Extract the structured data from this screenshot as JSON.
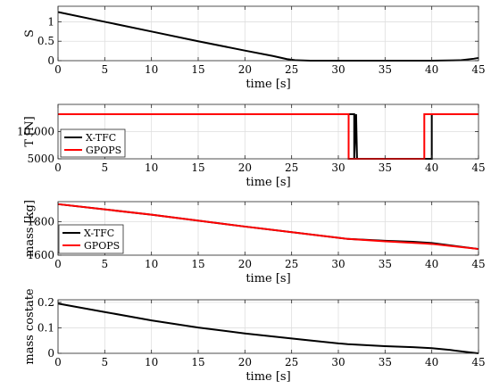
{
  "chart_data": [
    {
      "type": "line",
      "ylabel": "S",
      "xlabel": "time [s]",
      "xlim": [
        0,
        45
      ],
      "ylim": [
        0,
        1.4
      ],
      "xticks": [
        0,
        5,
        10,
        15,
        20,
        25,
        30,
        35,
        40,
        45
      ],
      "yticks": [
        0,
        0.5,
        1
      ],
      "ytick_labels": [
        "0",
        "0.5",
        "1"
      ],
      "grid": true,
      "series": [
        {
          "color": "#000000",
          "x": [
            0,
            5,
            10,
            15,
            20,
            23,
            24.5,
            25.5,
            27,
            30,
            35,
            40,
            43,
            44.5,
            45
          ],
          "y": [
            1.25,
            1.0,
            0.75,
            0.5,
            0.26,
            0.12,
            0.04,
            0.01,
            0.0,
            0.0,
            0.0,
            0.0,
            0.01,
            0.05,
            0.07
          ]
        }
      ]
    },
    {
      "type": "line",
      "ylabel": "T [N]",
      "xlabel": "time [s]",
      "xlim": [
        0,
        45
      ],
      "ylim": [
        5000,
        15000
      ],
      "xticks": [
        0,
        5,
        10,
        15,
        20,
        25,
        30,
        35,
        40,
        45
      ],
      "yticks": [
        5000,
        10000
      ],
      "ytick_labels": [
        "5000",
        "10,000"
      ],
      "grid": true,
      "legend": "bottom-left",
      "series": [
        {
          "name": "X-TFC",
          "color": "#000000",
          "x": [
            0,
            31.7,
            31.7,
            31.9,
            32.0,
            32.1,
            32.2,
            39.8,
            39.9,
            40.0,
            40.0,
            45
          ],
          "y": [
            13200,
            13200,
            5000,
            13200,
            5000,
            5000,
            5000,
            5000,
            5000,
            5000,
            13200,
            13200
          ]
        },
        {
          "name": "GPOPS",
          "color": "#ff0000",
          "x": [
            0,
            31.1,
            31.1,
            39.2,
            39.2,
            45
          ],
          "y": [
            13200,
            13200,
            5000,
            5000,
            13200,
            13200
          ]
        }
      ]
    },
    {
      "type": "line",
      "ylabel": "mass [kg]",
      "xlabel": "time [s]",
      "xlim": [
        0,
        45
      ],
      "ylim": [
        1600,
        1920
      ],
      "xticks": [
        0,
        5,
        10,
        15,
        20,
        25,
        30,
        35,
        40,
        45
      ],
      "yticks": [
        1600,
        1800
      ],
      "ytick_labels": [
        "1600",
        "1800"
      ],
      "grid": true,
      "legend": "center-right",
      "series": [
        {
          "name": "X-TFC",
          "color": "#000000",
          "x": [
            0,
            10,
            20,
            31,
            35,
            38,
            40,
            45
          ],
          "y": [
            1905,
            1842,
            1771,
            1697,
            1686,
            1680,
            1673,
            1637
          ]
        },
        {
          "name": "GPOPS",
          "color": "#ff0000",
          "x": [
            0,
            10,
            20,
            31,
            35,
            39.2,
            40,
            45
          ],
          "y": [
            1905,
            1842,
            1771,
            1697,
            1683,
            1670,
            1667,
            1637
          ]
        }
      ]
    },
    {
      "type": "line",
      "ylabel": "mass costate",
      "xlabel": "time [s]",
      "xlim": [
        0,
        45
      ],
      "ylim": [
        0,
        0.21
      ],
      "xticks": [
        0,
        5,
        10,
        15,
        20,
        25,
        30,
        35,
        40,
        45
      ],
      "yticks": [
        0,
        0.1,
        0.2
      ],
      "ytick_labels": [
        "0",
        "0.1",
        "0.2"
      ],
      "grid": true,
      "series": [
        {
          "color": "#000000",
          "x": [
            0,
            5,
            10,
            15,
            20,
            25,
            30,
            31,
            35,
            38,
            40,
            42,
            44,
            45
          ],
          "y": [
            0.195,
            0.162,
            0.129,
            0.101,
            0.078,
            0.058,
            0.039,
            0.036,
            0.028,
            0.024,
            0.02,
            0.013,
            0.004,
            0.0
          ]
        }
      ]
    }
  ]
}
